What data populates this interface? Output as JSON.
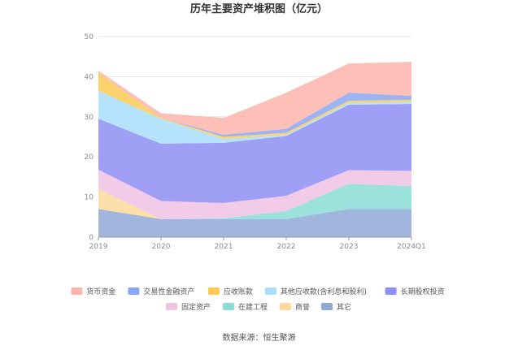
{
  "chart_data": {
    "type": "area",
    "stacked": true,
    "title": "历年主要资产堆积图（亿元）",
    "source": "数据来源：恒生聚源",
    "categories": [
      "2019",
      "2020",
      "2021",
      "2022",
      "2023",
      "2024Q1"
    ],
    "ylim": [
      0,
      50
    ],
    "yticks": [
      0,
      10,
      20,
      30,
      40,
      50
    ],
    "grid": true,
    "legend_position": "bottom",
    "series": [
      {
        "name": "其它",
        "color": "#8fa9d6",
        "values": [
          7.0,
          4.5,
          4.5,
          4.5,
          7.0,
          7.0
        ]
      },
      {
        "name": "商誉",
        "color": "#fcd99a",
        "values": [
          5.0,
          0.0,
          0.0,
          0.0,
          0.0,
          0.0
        ]
      },
      {
        "name": "在建工程",
        "color": "#8adcd6",
        "values": [
          0.0,
          0.0,
          0.2,
          2.0,
          6.3,
          5.7
        ]
      },
      {
        "name": "固定资产",
        "color": "#f0c2e4",
        "values": [
          4.8,
          4.5,
          3.8,
          3.8,
          3.4,
          3.8
        ]
      },
      {
        "name": "长期股权投资",
        "color": "#8f8ef5",
        "values": [
          12.7,
          14.3,
          15.0,
          14.9,
          16.3,
          16.7
        ]
      },
      {
        "name": "其他应收款(含利息和股利)",
        "color": "#a8defa",
        "values": [
          7.0,
          6.2,
          1.0,
          0.3,
          0.5,
          0.5
        ]
      },
      {
        "name": "应收账款",
        "color": "#fcca55",
        "values": [
          4.5,
          0.2,
          0.5,
          0.5,
          0.5,
          0.5
        ]
      },
      {
        "name": "交易性金融资产",
        "color": "#8ba6f4",
        "values": [
          0.0,
          0.0,
          0.5,
          1.0,
          2.0,
          1.0
        ]
      },
      {
        "name": "货币资金",
        "color": "#fbb5ad",
        "values": [
          0.5,
          1.2,
          4.2,
          9.0,
          7.3,
          8.5
        ]
      }
    ],
    "legend_order": [
      "货币资金",
      "交易性金融资产",
      "应收账款",
      "其他应收款(含利息和股利)",
      "长期股权投资",
      "固定资产",
      "在建工程",
      "商誉",
      "其它"
    ]
  }
}
